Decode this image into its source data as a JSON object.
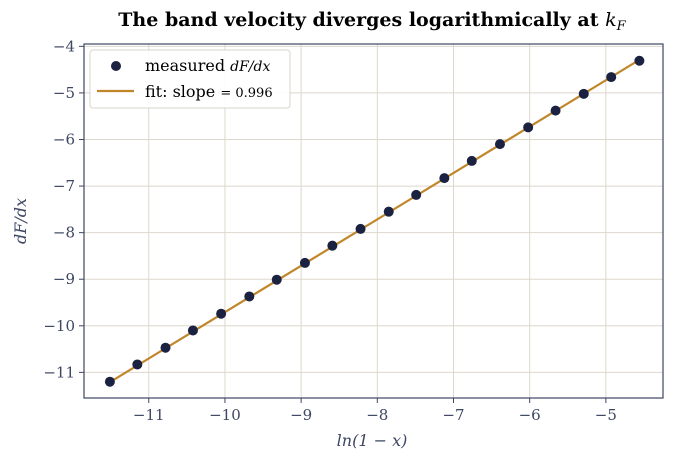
{
  "chart_data": {
    "type": "scatter",
    "title_main": "The band velocity diverges logarithmically at ",
    "title_symbol": "k",
    "title_symbol_sub": "F",
    "xlabel": "ln(1 − x)",
    "ylabel": "dF/dx",
    "xlim": [
      -11.85,
      -4.25
    ],
    "ylim": [
      -11.55,
      -3.95
    ],
    "xticks": [
      -11,
      -10,
      -9,
      -8,
      -7,
      -6,
      -5
    ],
    "yticks": [
      -11,
      -10,
      -9,
      -8,
      -7,
      -6,
      -5,
      -4
    ],
    "grid": true,
    "legend_position": "top-left",
    "series": [
      {
        "name": "measured dF/dx",
        "legend_prefix": "measured ",
        "legend_math": "dF/dx",
        "kind": "scatter",
        "color": "#1b2140",
        "x": [
          -11.51,
          -11.15,
          -10.78,
          -10.42,
          -10.05,
          -9.68,
          -9.32,
          -8.95,
          -8.59,
          -8.22,
          -7.85,
          -7.49,
          -7.12,
          -6.76,
          -6.39,
          -6.02,
          -5.66,
          -5.29,
          -4.93,
          -4.56
        ],
        "y": [
          -11.2,
          -10.83,
          -10.47,
          -10.1,
          -9.74,
          -9.37,
          -9.01,
          -8.65,
          -8.28,
          -7.92,
          -7.55,
          -7.19,
          -6.83,
          -6.46,
          -6.1,
          -5.74,
          -5.38,
          -5.02,
          -4.66,
          -4.31
        ]
      },
      {
        "name": "fit: slope = 0.996",
        "legend_prefix": "fit: slope ",
        "legend_math": "= 0.996",
        "kind": "line",
        "color": "#c0862a",
        "slope": 0.996,
        "x": [
          -11.51,
          -4.56
        ],
        "y": [
          -11.21,
          -4.29
        ]
      }
    ],
    "colors": {
      "axes_frame": "#3d4663",
      "grid": "#ddd8cc",
      "tick_text": "#3d4663",
      "legend_border": "#d8d4cc"
    }
  }
}
